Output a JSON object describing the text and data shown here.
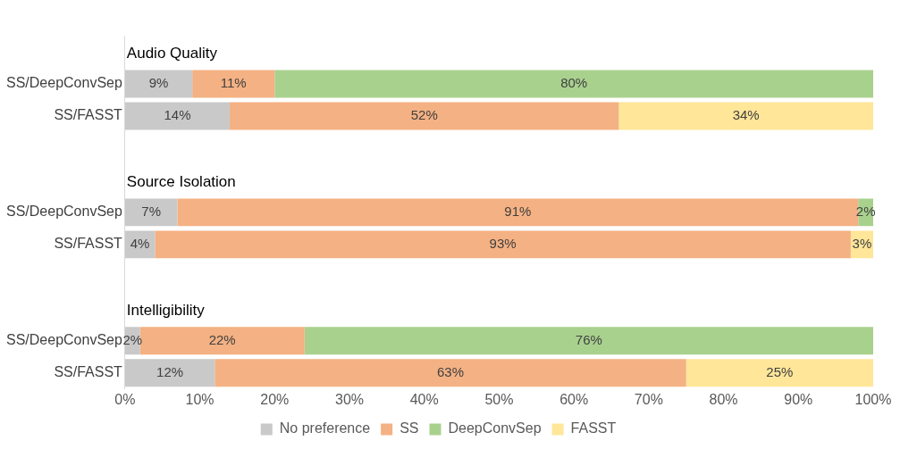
{
  "chart_data": {
    "type": "bar",
    "orientation": "horizontal",
    "stacked": true,
    "categories": [
      null,
      "SS/DeepConvSep",
      "SS/FASST",
      null,
      null,
      "SS/DeepConvSep",
      "SS/FASST",
      null,
      null,
      "SS/DeepConvSep",
      "SS/FASST"
    ],
    "annotations": [
      "Audio Quality",
      "Source Isolation",
      "Intelligibility"
    ],
    "series": [
      {
        "name": "No preference",
        "color": "#c9c9c9",
        "values": [
          null,
          9,
          14,
          null,
          null,
          7,
          4,
          null,
          null,
          2,
          12
        ],
        "value_labels": [
          null,
          "9%",
          "14%",
          null,
          null,
          "7%",
          "4%",
          null,
          null,
          "2%",
          "12%"
        ]
      },
      {
        "name": "SS",
        "color": "#f4b183",
        "values": [
          null,
          11,
          52,
          null,
          null,
          91,
          93,
          null,
          null,
          22,
          63
        ],
        "value_labels": [
          null,
          "11%",
          "52%",
          null,
          null,
          "91%",
          "93%",
          null,
          null,
          "22%",
          "63%"
        ]
      },
      {
        "name": "DeepConvSep",
        "color": "#a9d18e",
        "values": [
          null,
          80,
          null,
          null,
          null,
          2,
          null,
          null,
          null,
          76,
          null
        ],
        "value_labels": [
          null,
          "80%",
          null,
          null,
          null,
          "2%",
          null,
          null,
          null,
          "76%",
          null
        ]
      },
      {
        "name": "FASST",
        "color": "#ffe699",
        "values": [
          null,
          null,
          34,
          null,
          null,
          null,
          3,
          null,
          null,
          null,
          25
        ],
        "value_labels": [
          null,
          null,
          "34%",
          null,
          null,
          null,
          "3%",
          null,
          null,
          null,
          "25%"
        ]
      }
    ],
    "xlim": [
      0,
      100
    ],
    "xticks": [
      {
        "value": 0,
        "label": "0%"
      },
      {
        "value": 10,
        "label": "10%"
      },
      {
        "value": 20,
        "label": "20%"
      },
      {
        "value": 30,
        "label": "30%"
      },
      {
        "value": 40,
        "label": "40%"
      },
      {
        "value": 50,
        "label": "50%"
      },
      {
        "value": 60,
        "label": "60%"
      },
      {
        "value": 70,
        "label": "70%"
      },
      {
        "value": 80,
        "label": "80%"
      },
      {
        "value": 90,
        "label": "90%"
      },
      {
        "value": 100,
        "label": "100%"
      }
    ],
    "grid": false,
    "legend": "bottom"
  }
}
